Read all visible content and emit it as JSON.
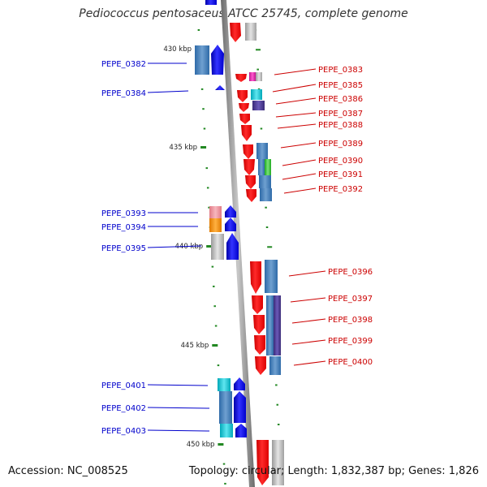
{
  "title": "Pediococcus pentosaceus ATCC 25745, complete genome",
  "footer": {
    "accession": "Accession: NC_008525",
    "stats": "Topology: circular; Length: 1,832,387 bp; Genes: 1,826"
  },
  "colors": {
    "backbone": "#8c8c8c",
    "forward_gene": "#0000ee",
    "reverse_gene": "#ee0000",
    "tick": "#228822",
    "left_label": "#0000cc",
    "right_label": "#cc0000"
  },
  "ticks": [
    "430 kbp",
    "435 kbp",
    "440 kbp",
    "445 kbp",
    "450 kbp"
  ],
  "left_genes": [
    "PEPE_0382",
    "PEPE_0384",
    "PEPE_0393",
    "PEPE_0394",
    "PEPE_0395",
    "PEPE_0401",
    "PEPE_0402",
    "PEPE_0403"
  ],
  "right_genes": [
    "PEPE_0383",
    "PEPE_0385",
    "PEPE_0386",
    "PEPE_0387",
    "PEPE_0388",
    "PEPE_0389",
    "PEPE_0390",
    "PEPE_0391",
    "PEPE_0392",
    "PEPE_0396",
    "PEPE_0397",
    "PEPE_0398",
    "PEPE_0399",
    "PEPE_0400"
  ]
}
